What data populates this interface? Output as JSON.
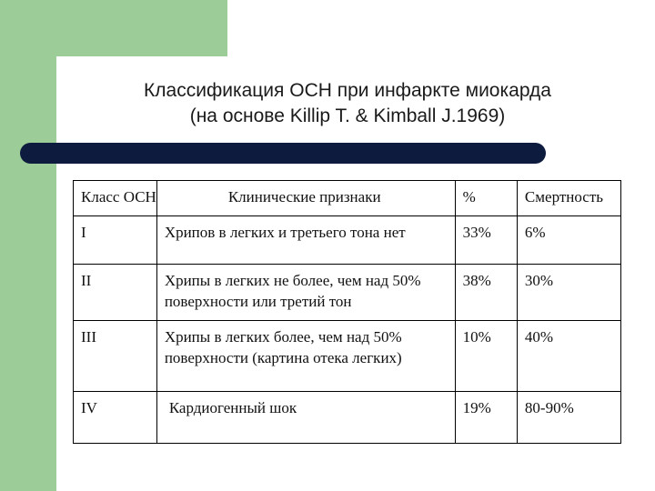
{
  "title": {
    "line1": "Классификация ОСН при инфаркте миокарда",
    "line2": "(на основе Killip T. & Kimball J.1969)"
  },
  "table": {
    "headers": [
      "Класс ОСН",
      "Клинические признаки",
      "%",
      "Смертность"
    ],
    "rows": [
      {
        "class": "I",
        "signs": "Хрипов в легких и третьего тона нет",
        "percent": "33%",
        "mortality": "6%"
      },
      {
        "class": "II",
        "signs": "Хрипы в легких не более, чем над 50% поверхности или третий тон",
        "percent": "38%",
        "mortality": "30%"
      },
      {
        "class": "III",
        "signs": "Хрипы в легких более, чем над 50% поверхности (картина отека легких)",
        "percent": "10%",
        "mortality": "40%"
      },
      {
        "class": "IV",
        "signs": "Кардиогенный шок",
        "percent": "19%",
        "mortality": "80-90%"
      }
    ]
  },
  "colors": {
    "accent_green": "#9ccc97",
    "rule_navy": "#0d1b3e"
  }
}
